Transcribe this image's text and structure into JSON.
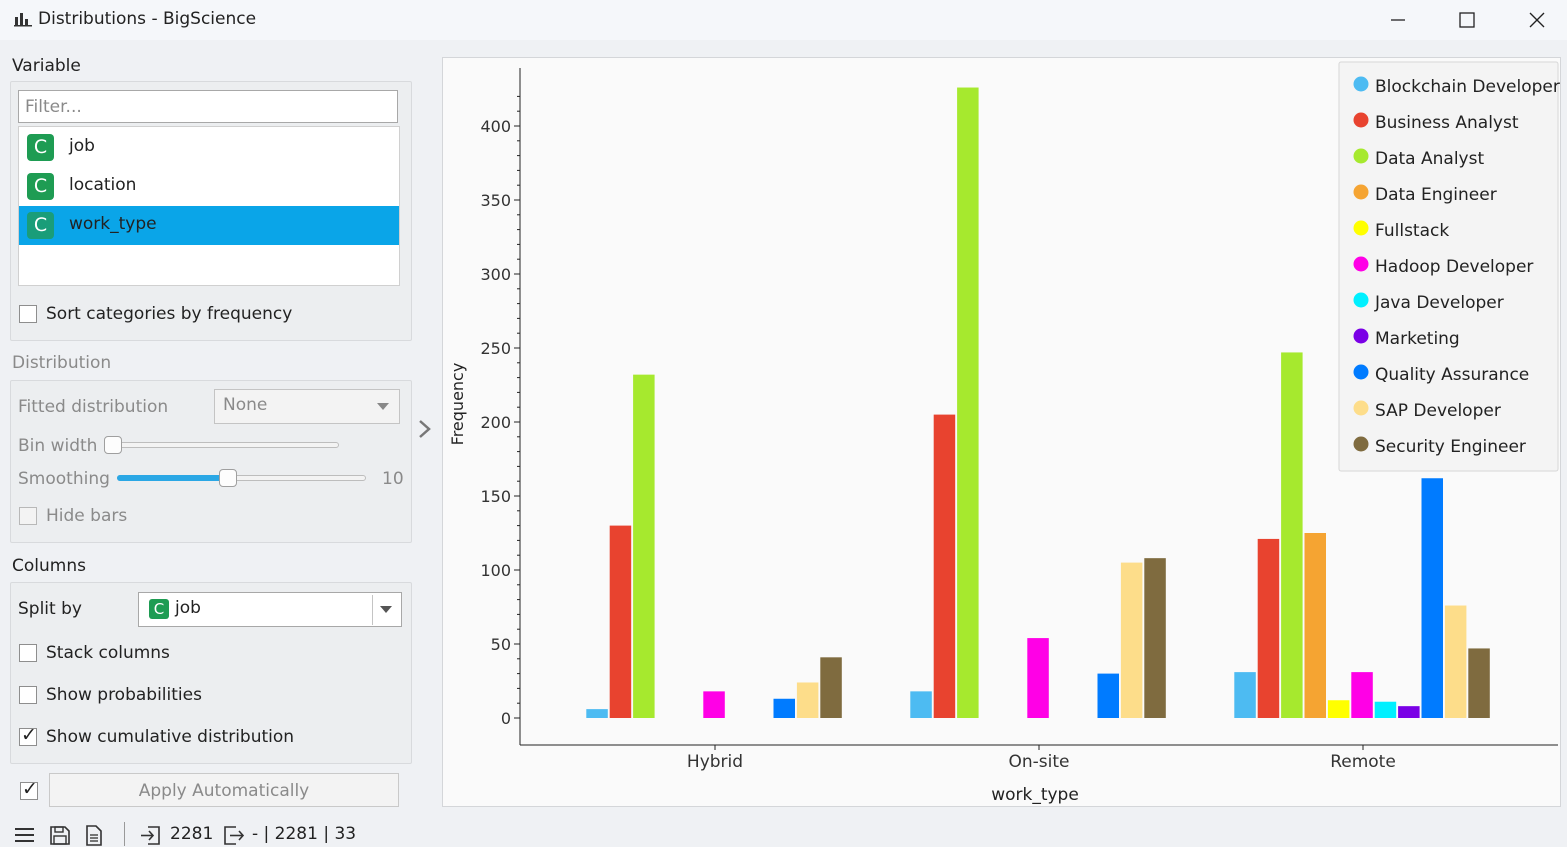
{
  "window": {
    "title": "Distributions - BigScience",
    "app_icon": "bar-chart-icon",
    "minimize_icon": "minimize-icon",
    "maximize_icon": "maximize-icon",
    "close_icon": "close-icon"
  },
  "variable": {
    "section_label": "Variable",
    "filter_placeholder": "Filter...",
    "items": [
      {
        "type_badge": "C",
        "name": "job",
        "selected": false
      },
      {
        "type_badge": "C",
        "name": "location",
        "selected": false
      },
      {
        "type_badge": "C",
        "name": "work_type",
        "selected": true
      }
    ],
    "sort_by_frequency": {
      "label": "Sort categories by frequency",
      "checked": false
    }
  },
  "distribution": {
    "section_label": "Distribution",
    "fitted_label": "Fitted distribution",
    "fitted_value": "None",
    "bin_width_label": "Bin width",
    "bin_width_level": 0.0,
    "smoothing_label": "Smoothing",
    "smoothing_value": "10",
    "smoothing_level": 0.45,
    "hide_bars": {
      "label": "Hide bars",
      "checked": false
    }
  },
  "columns": {
    "section_label": "Columns",
    "split_by_label": "Split by",
    "split_by_badge": "C",
    "split_by_value": "job",
    "stack_columns": {
      "label": "Stack columns",
      "checked": false
    },
    "show_probabilities": {
      "label": "Show probabilities",
      "checked": false
    },
    "show_cumulative": {
      "label": "Show cumulative distribution",
      "checked": true
    }
  },
  "apply": {
    "label": "Apply Automatically",
    "auto_checked": true
  },
  "statusbar": {
    "menu_icon": "menu-icon",
    "save_icon": "save-icon",
    "report_icon": "report-icon",
    "input_icon": "input-icon",
    "input_count": "2281",
    "output_icon": "output-icon",
    "output_summary": "- | 2281 | 33"
  },
  "chart_data": {
    "type": "bar",
    "xlabel": "work_type",
    "ylabel": "Frequency",
    "categories": [
      "Hybrid",
      "On-site",
      "Remote"
    ],
    "ylim": [
      0,
      430
    ],
    "yticks": [
      0,
      50,
      100,
      150,
      200,
      250,
      300,
      350,
      400
    ],
    "legend_position": "top-right",
    "series": [
      {
        "name": "Blockchain Developer",
        "color": "#4dbbf2",
        "values": [
          6,
          18,
          31
        ]
      },
      {
        "name": "Business Analyst",
        "color": "#e8432f",
        "values": [
          130,
          205,
          121
        ]
      },
      {
        "name": "Data Analyst",
        "color": "#a6e92e",
        "values": [
          232,
          426,
          247
        ]
      },
      {
        "name": "Data Engineer",
        "color": "#f5a432",
        "values": [
          0,
          0,
          125
        ]
      },
      {
        "name": "Fullstack",
        "color": "#ffff00",
        "values": [
          0,
          0,
          12
        ]
      },
      {
        "name": "Hadoop Developer",
        "color": "#ff00e6",
        "values": [
          18,
          54,
          31
        ]
      },
      {
        "name": "Java Developer",
        "color": "#00f0ff",
        "values": [
          0,
          0,
          11
        ]
      },
      {
        "name": "Marketing",
        "color": "#7a00e6",
        "values": [
          0,
          0,
          8
        ]
      },
      {
        "name": "Quality Assurance",
        "color": "#007bff",
        "values": [
          13,
          30,
          162
        ]
      },
      {
        "name": "SAP Developer",
        "color": "#fddd8a",
        "values": [
          24,
          105,
          76
        ]
      },
      {
        "name": "Security Engineer",
        "color": "#7f6b3f",
        "values": [
          41,
          108,
          47
        ]
      }
    ]
  }
}
